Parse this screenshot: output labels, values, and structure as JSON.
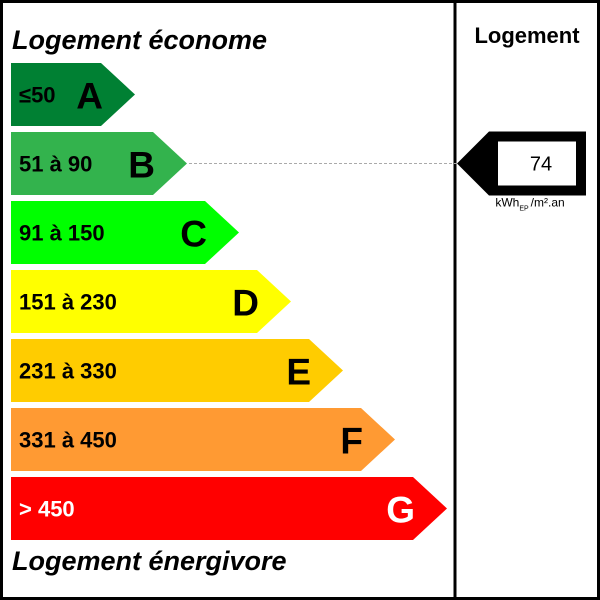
{
  "header": {
    "top_label": "Logement économe",
    "bottom_label": "Logement énergivore",
    "column_title": "Logement"
  },
  "classes": [
    {
      "range": "≤50",
      "letter": "A",
      "color": "#008033",
      "text_color": "#000000"
    },
    {
      "range": "51 à 90",
      "letter": "B",
      "color": "#33b34d",
      "text_color": "#000000"
    },
    {
      "range": "91 à 150",
      "letter": "C",
      "color": "#00ff00",
      "text_color": "#000000"
    },
    {
      "range": "151 à 230",
      "letter": "D",
      "color": "#ffff00",
      "text_color": "#000000"
    },
    {
      "range": "231 à 330",
      "letter": "E",
      "color": "#ffcc00",
      "text_color": "#000000"
    },
    {
      "range": "331 à 450",
      "letter": "F",
      "color": "#ff9a33",
      "text_color": "#000000"
    },
    {
      "range": "> 450",
      "letter": "G",
      "color": "#ff0000",
      "text_color": "#ffffff"
    }
  ],
  "reading": {
    "value": "74",
    "class_index": 1,
    "unit_prefix": "kWh",
    "unit_subscript": "EP",
    "unit_suffix": "/m².an"
  }
}
